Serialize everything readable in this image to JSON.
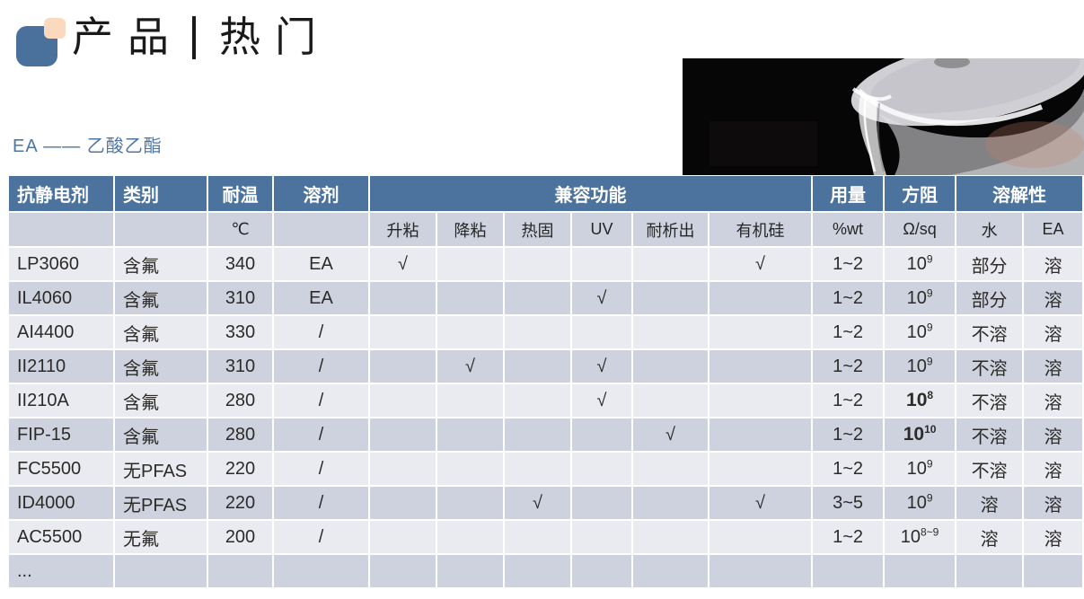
{
  "slide": {
    "title": {
      "left": "产品",
      "right": "热门"
    },
    "subtitle": "EA —— 乙酸乙酯"
  },
  "colors": {
    "header_bg": "#4b739e",
    "row_light": "#e9ebf1",
    "row_dark": "#cdd2de",
    "accent_blue": "#4b76a6",
    "logo_blue": "#49719c",
    "logo_peach": "#fad9be"
  },
  "table": {
    "check_glyph": "√",
    "header_row1": {
      "c0": "抗静电剂",
      "c1": "类别",
      "c2": "耐温",
      "c3": "溶剂",
      "c4": "兼容功能",
      "c5": "用量",
      "c6": "方阻",
      "c7": "溶解性"
    },
    "header_row2": [
      "",
      "",
      "℃",
      "",
      "升粘",
      "降粘",
      "热固",
      "UV",
      "耐析出",
      "有机硅",
      "%wt",
      "Ω/sq",
      "水",
      "EA"
    ],
    "rows": [
      {
        "name": "LP3060",
        "category": "含氟",
        "temp": "340",
        "solvent": "EA",
        "compat": [
          true,
          false,
          false,
          false,
          false,
          true
        ],
        "dosage": "1~2",
        "resistance": {
          "base": "10",
          "exp": "9",
          "bold": false
        },
        "water": "部分",
        "ea": "溶"
      },
      {
        "name": "IL4060",
        "category": "含氟",
        "temp": "310",
        "solvent": "EA",
        "compat": [
          false,
          false,
          false,
          true,
          false,
          false
        ],
        "dosage": "1~2",
        "resistance": {
          "base": "10",
          "exp": "9",
          "bold": false
        },
        "water": "部分",
        "ea": "溶"
      },
      {
        "name": "AI4400",
        "category": "含氟",
        "temp": "330",
        "solvent": "/",
        "compat": [
          false,
          false,
          false,
          false,
          false,
          false
        ],
        "dosage": "1~2",
        "resistance": {
          "base": "10",
          "exp": "9",
          "bold": false
        },
        "water": "不溶",
        "ea": "溶"
      },
      {
        "name": "II2110",
        "category": "含氟",
        "temp": "310",
        "solvent": "/",
        "compat": [
          false,
          true,
          false,
          true,
          false,
          false
        ],
        "dosage": "1~2",
        "resistance": {
          "base": "10",
          "exp": "9",
          "bold": false
        },
        "water": "不溶",
        "ea": "溶"
      },
      {
        "name": "II210A",
        "category": "含氟",
        "temp": "280",
        "solvent": "/",
        "compat": [
          false,
          false,
          false,
          true,
          false,
          false
        ],
        "dosage": "1~2",
        "resistance": {
          "base": "10",
          "exp": "8",
          "bold": true
        },
        "water": "不溶",
        "ea": "溶"
      },
      {
        "name": "FIP-15",
        "category": "含氟",
        "temp": "280",
        "solvent": "/",
        "compat": [
          false,
          false,
          false,
          false,
          true,
          false
        ],
        "dosage": "1~2",
        "resistance": {
          "base": "10",
          "exp": "10",
          "bold": true
        },
        "water": "不溶",
        "ea": "溶"
      },
      {
        "name": "FC5500",
        "category": "无PFAS",
        "temp": "220",
        "solvent": "/",
        "compat": [
          false,
          false,
          false,
          false,
          false,
          false
        ],
        "dosage": "1~2",
        "resistance": {
          "base": "10",
          "exp": "9",
          "bold": false
        },
        "water": "不溶",
        "ea": "溶"
      },
      {
        "name": "ID4000",
        "category": "无PFAS",
        "temp": "220",
        "solvent": "/",
        "compat": [
          false,
          false,
          true,
          false,
          false,
          true
        ],
        "dosage": "3~5",
        "resistance": {
          "base": "10",
          "exp": "9",
          "bold": false
        },
        "water": "溶",
        "ea": "溶"
      },
      {
        "name": "AC5500",
        "category": "无氟",
        "temp": "200",
        "solvent": "/",
        "compat": [
          false,
          false,
          false,
          false,
          false,
          false
        ],
        "dosage": "1~2",
        "resistance": {
          "base": "10",
          "exp": "8~9",
          "bold": false
        },
        "water": "溶",
        "ea": "溶"
      },
      {
        "name": "...",
        "category": "",
        "temp": "",
        "solvent": "",
        "compat": [
          false,
          false,
          false,
          false,
          false,
          false
        ],
        "dosage": "",
        "resistance": null,
        "water": "",
        "ea": ""
      }
    ]
  }
}
